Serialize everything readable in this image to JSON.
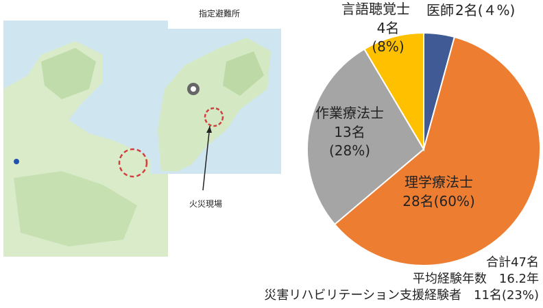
{
  "chart_data": {
    "type": "pie",
    "categories": [
      "医師",
      "理学療法士",
      "作業療法士",
      "言語聴覚士"
    ],
    "values": [
      2,
      28,
      13,
      4
    ],
    "value_labels": [
      "2名(４%)",
      "28名(60%)",
      "13名\n(28%)",
      "4名\n(8%)"
    ],
    "colors": [
      "#3f5a95",
      "#ed7d31",
      "#a5a5a5",
      "#ffc000"
    ],
    "notes": [
      "合計47名",
      "平均経験年数　16.2年",
      "災害リハビリテーション支援経験者　11名(23%)"
    ]
  },
  "maps": {
    "shelter_label": "指定避難所",
    "fire_label": "火災現場"
  }
}
